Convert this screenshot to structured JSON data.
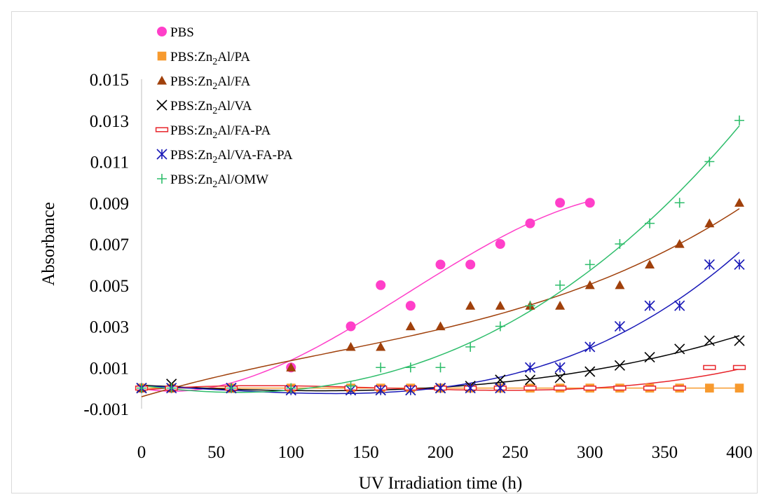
{
  "chart_data": {
    "type": "scatter",
    "title": "",
    "xlabel": "UV Irradiation time (h)",
    "ylabel": "Absorbance",
    "xlim": [
      0,
      400
    ],
    "ylim": [
      -0.001,
      0.015
    ],
    "xticks": [
      0,
      50,
      100,
      150,
      200,
      250,
      300,
      350,
      400
    ],
    "yticks": [
      -0.001,
      0.001,
      0.003,
      0.005,
      0.007,
      0.009,
      0.011,
      0.013,
      0.015
    ],
    "xtick_labels": [
      "0",
      "50",
      "100",
      "150",
      "200",
      "250",
      "300",
      "350",
      "400"
    ],
    "ytick_labels": [
      "-0.001",
      "0.001",
      "0.003",
      "0.005",
      "0.007",
      "0.009",
      "0.011",
      "0.013",
      "0.015"
    ],
    "grid": false,
    "legend_position": "top-left",
    "trendlines": "polynomial fit per series",
    "series": [
      {
        "name": "PBS",
        "name_parts": [
          "PBS",
          "",
          ""
        ],
        "marker": "circle",
        "color": "#ff3fc9",
        "x": [
          0,
          20,
          60,
          100,
          140,
          160,
          180,
          200,
          220,
          240,
          260,
          280,
          300
        ],
        "y": [
          0.0,
          0.0,
          0.0,
          0.001,
          0.003,
          0.005,
          0.004,
          0.006,
          0.006,
          0.007,
          0.008,
          0.009,
          0.009
        ]
      },
      {
        "name": "PBS:Zn2Al/PA",
        "name_parts": [
          "PBS:Zn",
          "2",
          "Al/PA"
        ],
        "marker": "square",
        "color": "#f79a2e",
        "x": [
          0,
          20,
          60,
          100,
          140,
          160,
          180,
          200,
          220,
          240,
          260,
          280,
          300,
          320,
          340,
          360,
          380,
          400
        ],
        "y": [
          0.0,
          0.0,
          0.0,
          0.0,
          0.0,
          0.0,
          0.0,
          0.0,
          0.0,
          0.0,
          0.0,
          0.0,
          0.0,
          0.0,
          0.0,
          0.0,
          0.0,
          0.0
        ]
      },
      {
        "name": "PBS:Zn2Al/FA",
        "name_parts": [
          "PBS:Zn",
          "2",
          "Al/FA"
        ],
        "marker": "triangle",
        "color": "#a0400b",
        "x": [
          0,
          20,
          60,
          100,
          140,
          160,
          180,
          200,
          220,
          240,
          260,
          280,
          300,
          320,
          340,
          360,
          380,
          400
        ],
        "y": [
          0.0,
          0.0,
          0.0,
          0.001,
          0.002,
          0.002,
          0.003,
          0.003,
          0.004,
          0.004,
          0.004,
          0.004,
          0.005,
          0.005,
          0.006,
          0.007,
          0.008,
          0.009
        ]
      },
      {
        "name": "PBS:Zn2Al/VA",
        "name_parts": [
          "PBS:Zn",
          "2",
          "Al/VA"
        ],
        "marker": "x",
        "color": "#000000",
        "x": [
          0,
          20,
          60,
          100,
          140,
          160,
          180,
          200,
          220,
          240,
          260,
          280,
          300,
          320,
          340,
          360,
          380,
          400
        ],
        "y": [
          0.0,
          0.0002,
          0.0,
          -0.0001,
          -0.0001,
          -0.0001,
          -0.0001,
          0.0,
          0.0001,
          0.0004,
          0.0004,
          0.0005,
          0.0008,
          0.0011,
          0.0015,
          0.0019,
          0.0023,
          0.0023
        ]
      },
      {
        "name": "PBS:Zn2Al/FA-PA",
        "name_parts": [
          "PBS:Zn",
          "2",
          "Al/FA-PA"
        ],
        "marker": "dash",
        "color": "#e8252b",
        "x": [
          0,
          20,
          60,
          100,
          140,
          160,
          180,
          200,
          220,
          240,
          260,
          280,
          300,
          320,
          340,
          360,
          380,
          400
        ],
        "y": [
          0.0,
          0.0,
          0.0,
          0.0,
          0.0,
          0.0,
          0.0,
          0.0,
          0.0,
          0.0,
          0.0,
          0.0,
          0.0,
          0.0,
          0.0,
          0.0,
          0.001,
          0.001
        ]
      },
      {
        "name": "PBS:Zn2Al/VA-FA-PA",
        "name_parts": [
          "PBS:Zn",
          "2",
          "Al/VA-FA-PA"
        ],
        "marker": "asterisk",
        "color": "#1a1ab8",
        "x": [
          0,
          20,
          60,
          100,
          140,
          160,
          180,
          200,
          220,
          240,
          260,
          280,
          300,
          320,
          340,
          360,
          380,
          400
        ],
        "y": [
          0.0,
          0.0,
          0.0,
          -0.0001,
          -0.0001,
          -0.0001,
          -0.0001,
          0.0,
          0.0,
          0.0,
          0.001,
          0.001,
          0.002,
          0.003,
          0.004,
          0.004,
          0.006,
          0.006
        ]
      },
      {
        "name": "PBS:Zn2Al/OMW",
        "name_parts": [
          "PBS:Zn",
          "2",
          "Al/OMW"
        ],
        "marker": "plus",
        "color": "#2ebd6b",
        "x": [
          0,
          20,
          60,
          100,
          140,
          160,
          180,
          200,
          220,
          240,
          260,
          280,
          300,
          320,
          340,
          360,
          380,
          400
        ],
        "y": [
          0.0,
          0.0,
          0.0,
          0.0,
          0.0001,
          0.001,
          0.001,
          0.001,
          0.002,
          0.003,
          0.004,
          0.005,
          0.006,
          0.007,
          0.008,
          0.009,
          0.011,
          0.013
        ]
      }
    ]
  }
}
